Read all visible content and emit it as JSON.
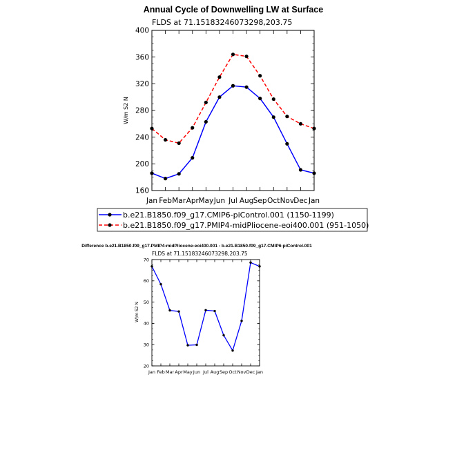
{
  "colors": {
    "control": "#0000ff",
    "pliocene": "#ff0000",
    "marker": "#000000",
    "difference": "#0000ff"
  },
  "chart_data": [
    {
      "type": "line",
      "title": "Annual Cycle of Downwelling LW at Surface",
      "subtitle": "FLDS at 71.15183246073298,203.75",
      "xlabel": "",
      "ylabel": "W/m S2 N",
      "categories": [
        "Jan",
        "Feb",
        "Mar",
        "Apr",
        "May",
        "Jun",
        "Jul",
        "Aug",
        "Sep",
        "Oct",
        "Nov",
        "Dec",
        "Jan"
      ],
      "ylim": [
        160,
        400
      ],
      "yticks": [
        "160",
        "200",
        "240",
        "280",
        "320",
        "360",
        "400"
      ],
      "series": [
        {
          "name": "b.e21.B1850.f09_g17.CMIP6-piControl.001 (1150-1199)",
          "style": "solid",
          "values": [
            186,
            178,
            185,
            209,
            263,
            300,
            317,
            315,
            298,
            270,
            230,
            191,
            186
          ]
        },
        {
          "name": "b.e21.B1850.f09_g17.PMIP4-midPliocene-eoi400.001 (951-1050)",
          "style": "dashed",
          "values": [
            253,
            236,
            231,
            254,
            292,
            330,
            364,
            361,
            332,
            297,
            271,
            260,
            253
          ]
        }
      ]
    },
    {
      "type": "line",
      "title": "Difference b.e21.B1850.f09_g17.PMIP4-midPliocene-eoi400.001 - b.e21.B1850.f09_g17.CMIP6-piControl.001",
      "subtitle": "FLDS at 71.15183246073298,203.75",
      "xlabel": "",
      "ylabel": "W/m S2 N",
      "categories": [
        "Jan",
        "Feb",
        "Mar",
        "Apr",
        "May",
        "Jun",
        "Jul",
        "Aug",
        "Sep",
        "Oct",
        "Nov",
        "Dec",
        "Jan"
      ],
      "ylim": [
        20,
        70
      ],
      "yticks": [
        "20",
        "30",
        "40",
        "50",
        "60",
        "70"
      ],
      "series": [
        {
          "name": "",
          "style": "solid",
          "values": [
            66.8,
            58.4,
            46.1,
            45.6,
            29.7,
            29.9,
            46.2,
            45.8,
            34.4,
            27.2,
            41.2,
            68.6,
            66.8
          ]
        }
      ]
    }
  ]
}
